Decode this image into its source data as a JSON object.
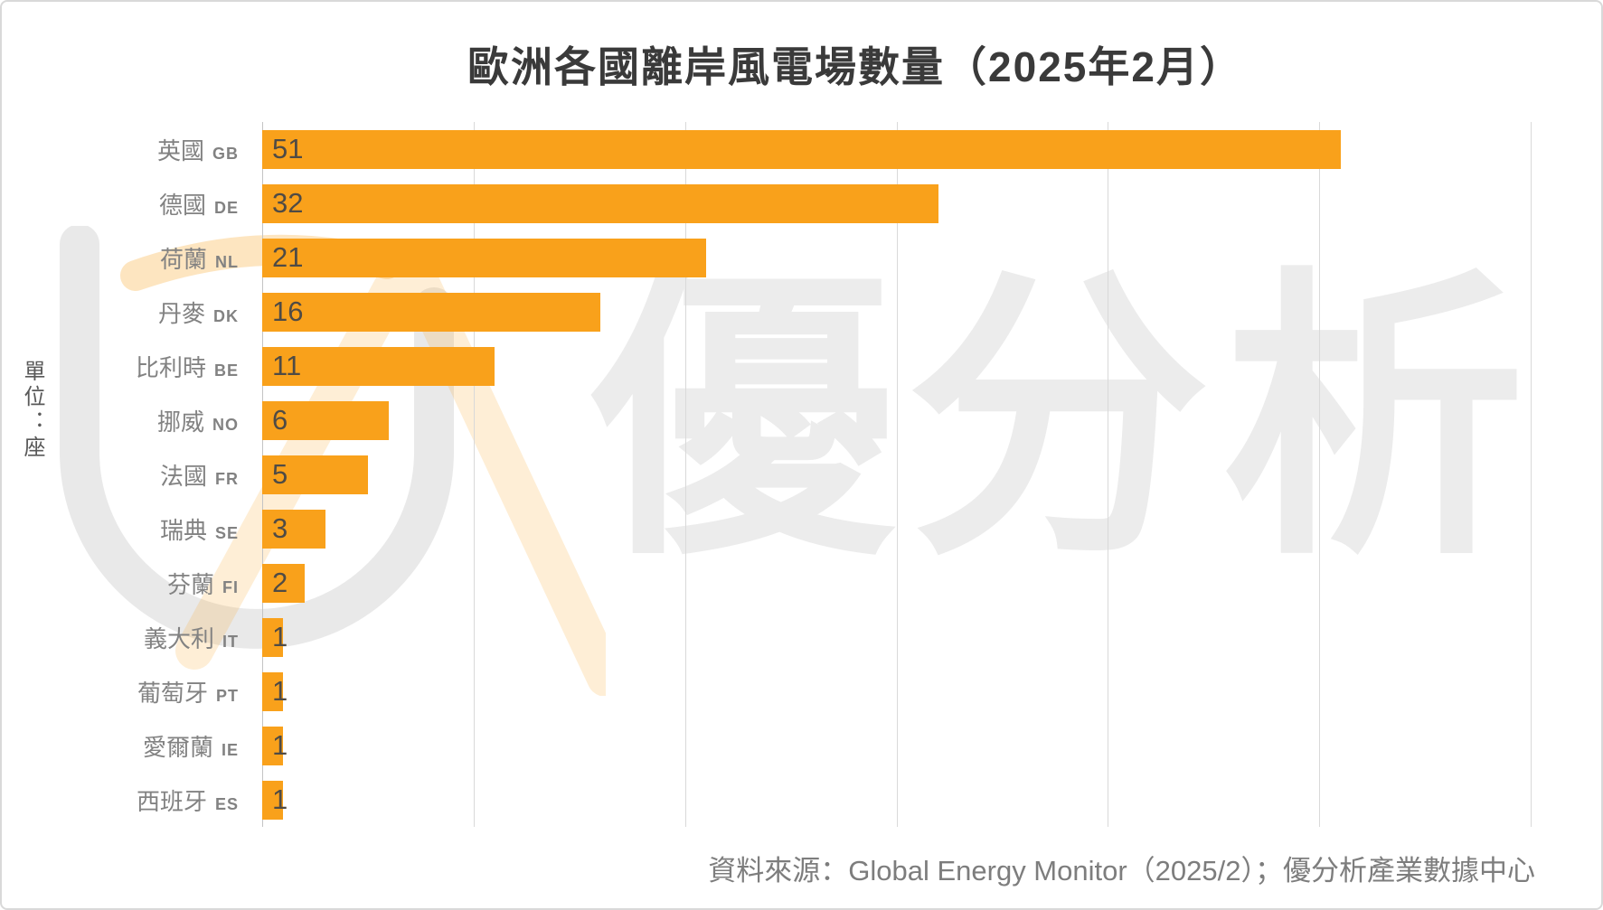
{
  "title": "歐洲各國離岸風電場數量（2025年2月）",
  "unit_label": "單位：座",
  "source_note": "資料來源：Global Energy Monitor（2025/2）；優分析產業數據中心",
  "watermark": {
    "text": "優分析"
  },
  "colors": {
    "bar": "#f9a11b",
    "value_label": "#4f4b45",
    "category_label": "#828282",
    "title": "#3a3a3a",
    "gridline": "#d9d9d9",
    "source": "#7d7d7d",
    "watermark": "#ececec"
  },
  "chart_data": {
    "type": "bar",
    "orientation": "horizontal",
    "title": "歐洲各國離岸風電場數量（2025年2月）",
    "unit": "座",
    "xlim": [
      0,
      60
    ],
    "grid_interval": 10,
    "grid": "vertical-only",
    "legend": "none",
    "categories": [
      "英國 GB",
      "德國 DE",
      "荷蘭 NL",
      "丹麥 DK",
      "比利時 BE",
      "挪威 NO",
      "法國 FR",
      "瑞典 SE",
      "芬蘭 FI",
      "義大利 IT",
      "葡萄牙 PT",
      "愛爾蘭 IE",
      "西班牙 ES"
    ],
    "values": [
      51,
      32,
      21,
      16,
      11,
      6,
      5,
      3,
      2,
      1,
      1,
      1,
      1
    ],
    "items": [
      {
        "country": "英國",
        "code": "GB",
        "value": 51
      },
      {
        "country": "德國",
        "code": "DE",
        "value": 32
      },
      {
        "country": "荷蘭",
        "code": "NL",
        "value": 21
      },
      {
        "country": "丹麥",
        "code": "DK",
        "value": 16
      },
      {
        "country": "比利時",
        "code": "BE",
        "value": 11
      },
      {
        "country": "挪威",
        "code": "NO",
        "value": 6
      },
      {
        "country": "法國",
        "code": "FR",
        "value": 5
      },
      {
        "country": "瑞典",
        "code": "SE",
        "value": 3
      },
      {
        "country": "芬蘭",
        "code": "FI",
        "value": 2
      },
      {
        "country": "義大利",
        "code": "IT",
        "value": 1
      },
      {
        "country": "葡萄牙",
        "code": "PT",
        "value": 1
      },
      {
        "country": "愛爾蘭",
        "code": "IE",
        "value": 1
      },
      {
        "country": "西班牙",
        "code": "ES",
        "value": 1
      }
    ]
  }
}
